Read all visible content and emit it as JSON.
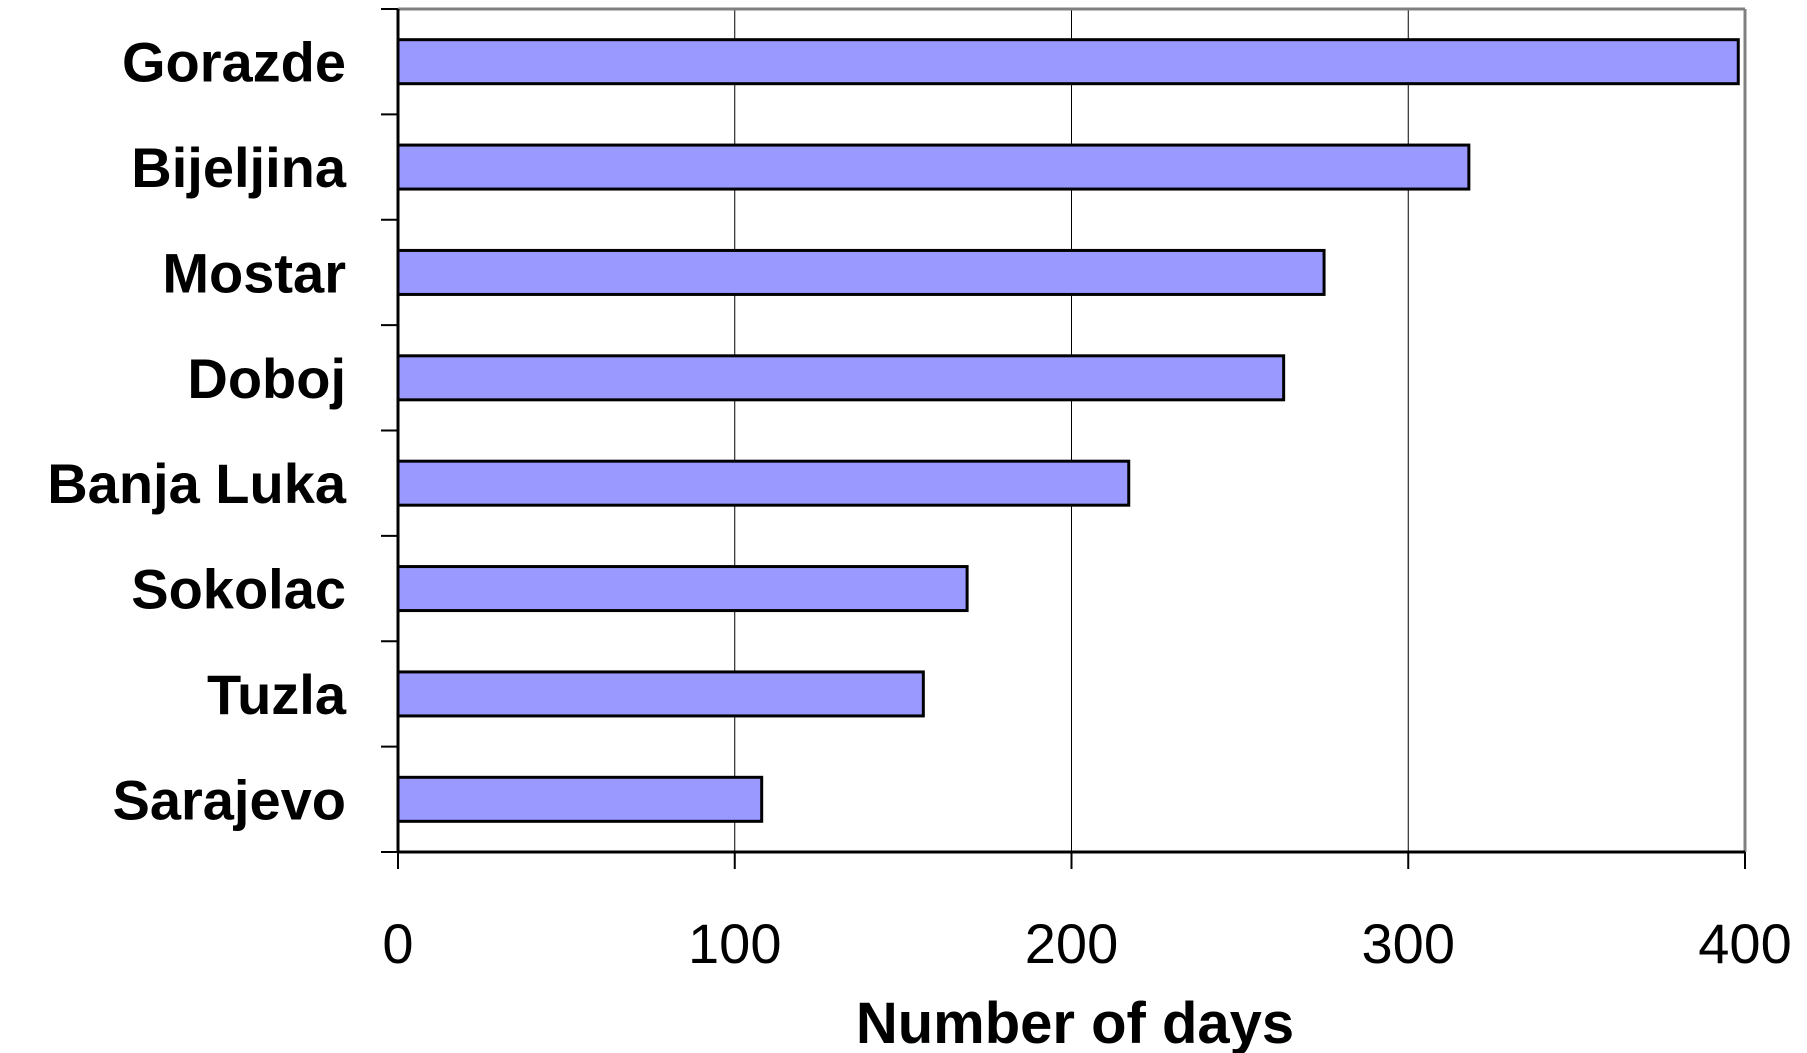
{
  "chart_data": {
    "type": "bar",
    "orientation": "horizontal",
    "categories": [
      "Gorazde",
      "Bijeljina",
      "Mostar",
      "Doboj",
      "Banja Luka",
      "Sokolac",
      "Tuzla",
      "Sarajevo"
    ],
    "values": [
      398,
      318,
      275,
      263,
      217,
      169,
      156,
      108
    ],
    "title": "",
    "xlabel": "Number of days",
    "ylabel": "",
    "xlim": [
      0,
      400
    ],
    "xticks": [
      "0",
      "100",
      "200",
      "300",
      "400"
    ],
    "grid": "vertical gridlines",
    "legend": "none",
    "colors": {
      "bar_fill": "#9999ff",
      "bar_stroke": "#000000",
      "grid": "#000000",
      "frame": "#808080"
    }
  }
}
